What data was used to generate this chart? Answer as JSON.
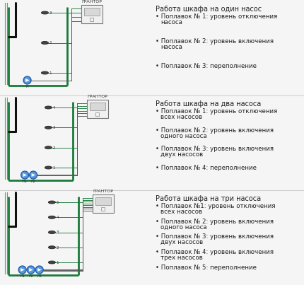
{
  "bg_color": "#f5f5f5",
  "panel_titles": [
    "Работа шкафа на один насос",
    "Работа шкафа на два насоса",
    "Работа шкафа на три насоса"
  ],
  "panel_bullets": [
    [
      "Поплавок № 1: уровень отключения\nнасоса",
      "Поплавок № 2: уровень включения\nнасоса",
      "Поплавок № 3: переполнение"
    ],
    [
      "Поплавок № 1: уровень отключения\nвсех насосов",
      "Поплавок № 2: уровень включения\nодного насоса",
      "Поплавок № 3: уровень включения\nдвух насосов",
      "Поплавок № 4: переполнение"
    ],
    [
      "Поплавок №1: уровень отключения\nвсех насосов",
      "Поплавок № 2: уровень включения\nодного насоса",
      "Поплавок № 3: уровень включения\nдвух насосов",
      "Поплавок № 4: уровень включения\nтрех насосов",
      "Поплавок № 5: переполнение"
    ]
  ],
  "tank_color": "#1a7a3a",
  "tank_lw": 2.0,
  "pipe_color": "#111111",
  "sensor_fill": "#444444",
  "sensor_edge": "#222222",
  "pump_face": "#5599dd",
  "pump_edge": "#2255aa",
  "box_face": "#f0f0f0",
  "box_edge": "#777777",
  "wire_green": "#1a7a3a",
  "wire_dark": "#555555",
  "text_color": "#222222",
  "title_fs": 7.0,
  "bullet_fs": 6.2
}
